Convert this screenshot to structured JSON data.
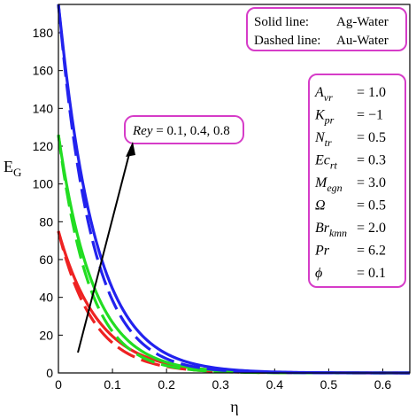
{
  "chart_data": {
    "type": "line",
    "xlabel": "η",
    "ylabel": "E",
    "ylabel_sub": "G",
    "xlim": [
      0,
      0.65
    ],
    "ylim": [
      0,
      195
    ],
    "xticks": [
      "0",
      "0.1",
      "0.2",
      "0.3",
      "0.4",
      "0.5",
      "0.6"
    ],
    "yticks": [
      "0",
      "20",
      "40",
      "60",
      "80",
      "100",
      "120",
      "140",
      "160",
      "180"
    ],
    "legend": {
      "solid_label": "Solid line:",
      "solid_value": "Ag-Water",
      "dashed_label": "Dashed line:",
      "dashed_value": "Au-Water"
    },
    "annotation": {
      "var": "Rey",
      "values": " = 0.1, 0.4, 0.8"
    },
    "parameters": [
      {
        "name": "A",
        "sub": "vr",
        "value": "= 1.0"
      },
      {
        "name": "K",
        "sub": "pr",
        "value": "= −1"
      },
      {
        "name": "N",
        "sub": "tr",
        "value": "= 0.5"
      },
      {
        "name": "Ec",
        "sub": "rt",
        "value": "= 0.3"
      },
      {
        "name": "M",
        "sub": "egn",
        "value": "= 3.0"
      },
      {
        "name": "Ω",
        "sub": "",
        "value": "= 0.5"
      },
      {
        "name": "Br",
        "sub": "kmn",
        "value": "= 2.0"
      },
      {
        "name": "Pr",
        "sub": "",
        "value": "= 6.2"
      },
      {
        "name": "ϕ",
        "sub": "",
        "value": "= 0.1"
      }
    ],
    "series": [
      {
        "rey": 0.1,
        "fluid": "Ag-Water",
        "style": "solid",
        "color": "#ee2222",
        "y0": 75,
        "decay": 13.5
      },
      {
        "rey": 0.1,
        "fluid": "Au-Water",
        "style": "dashed",
        "color": "#ee2222",
        "y0": 75,
        "decay": 15.5
      },
      {
        "rey": 0.4,
        "fluid": "Ag-Water",
        "style": "solid",
        "color": "#22dd22",
        "y0": 126,
        "decay": 15.5
      },
      {
        "rey": 0.4,
        "fluid": "Au-Water",
        "style": "dashed",
        "color": "#22dd22",
        "y0": 126,
        "decay": 17.5
      },
      {
        "rey": 0.8,
        "fluid": "Ag-Water",
        "style": "solid",
        "color": "#2222ee",
        "y0": 196,
        "decay": 14.8
      },
      {
        "rey": 0.8,
        "fluid": "Au-Water",
        "style": "dashed",
        "color": "#2222ee",
        "y0": 196,
        "decay": 16.3
      }
    ],
    "colors": {
      "box_border": "#d63cc8",
      "arrow": "#000000"
    }
  }
}
